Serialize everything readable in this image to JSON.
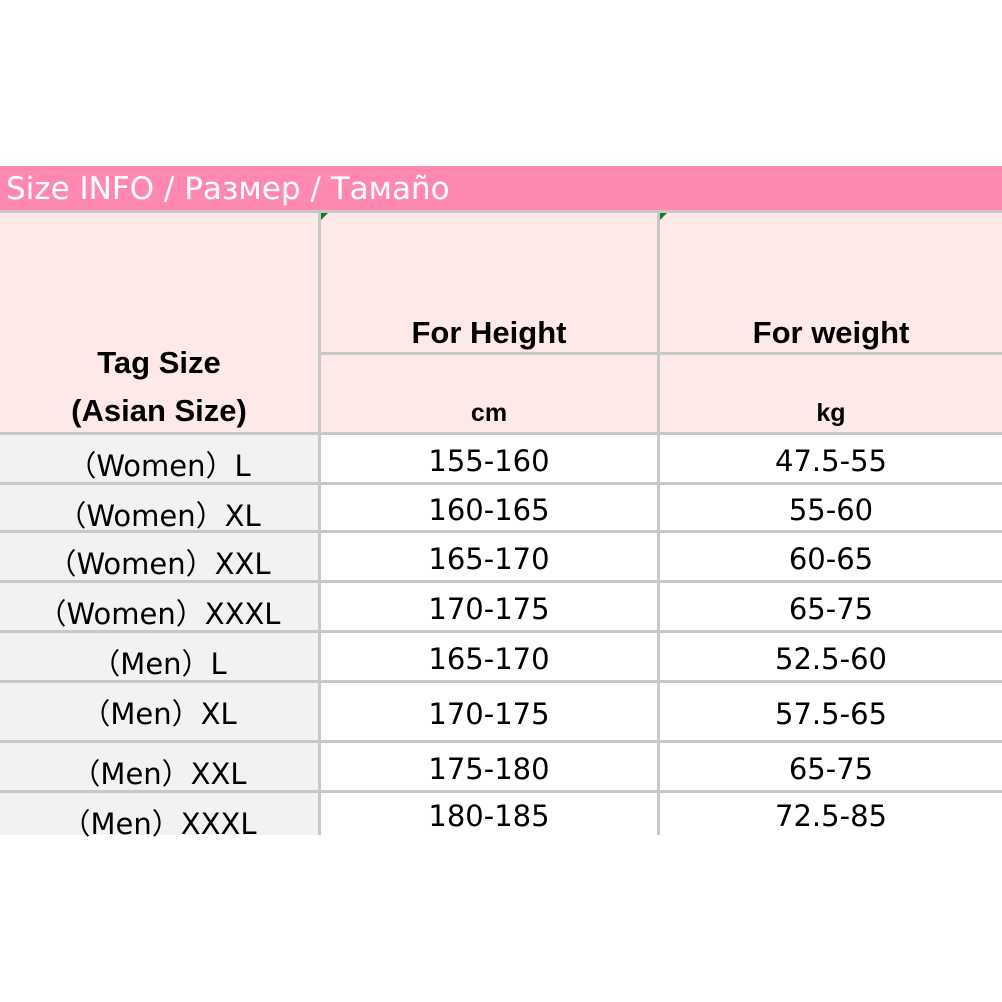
{
  "title": "Size INFO / Размер / Тамаño",
  "header": {
    "tag_size": "Tag Size\n(Asian Size)",
    "tag_size_line1": "Tag Size",
    "tag_size_line2": "(Asian Size)",
    "height": "For Height",
    "height_unit": "cm",
    "weight": "For weight",
    "weight_unit": "kg"
  },
  "colors": {
    "title_bar": "#ff88b3",
    "header_bg": "#fde9e8",
    "tag_col_bg": "#f2f2f2",
    "grid": "#c8c8c8"
  },
  "rows": [
    {
      "tag": "（Women）L",
      "height": "155-160",
      "weight": "47.5-55"
    },
    {
      "tag": "（Women）XL",
      "height": "160-165",
      "weight": "55-60"
    },
    {
      "tag": "（Women）XXL",
      "height": "165-170",
      "weight": "60-65"
    },
    {
      "tag": "（Women）XXXL",
      "height": "170-175",
      "weight": "65-75"
    },
    {
      "tag": "（Men）L",
      "height": "165-170",
      "weight": "52.5-60"
    },
    {
      "tag": "（Men）XL",
      "height": "170-175",
      "weight": "57.5-65"
    },
    {
      "tag": "（Men）XXL",
      "height": "175-180",
      "weight": "65-75"
    },
    {
      "tag": "（Men）XXXL",
      "height": "180-185",
      "weight": "72.5-85"
    }
  ]
}
